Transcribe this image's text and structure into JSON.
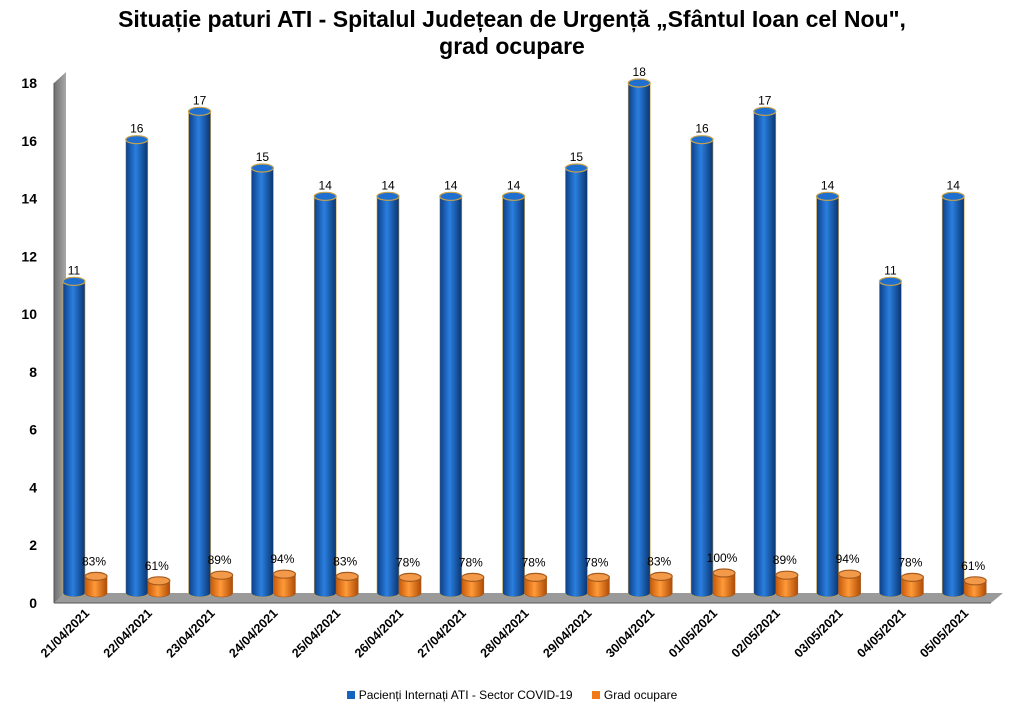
{
  "chart_data": {
    "type": "bar",
    "title": "Situație paturi ATI - Spitalul Județean de Urgență „Sfântul Ioan cel Nou\", grad ocupare",
    "categories": [
      "21/04/2021",
      "22/04/2021",
      "23/04/2021",
      "24/04/2021",
      "25/04/2021",
      "26/04/2021",
      "27/04/2021",
      "28/04/2021",
      "29/04/2021",
      "30/04/2021",
      "01/05/2021",
      "02/05/2021",
      "03/05/2021",
      "04/05/2021",
      "05/05/2021"
    ],
    "series": [
      {
        "name": "Pacienți Internați ATI - Sector COVID-19",
        "values": [
          11,
          16,
          17,
          15,
          14,
          14,
          14,
          14,
          15,
          18,
          16,
          17,
          14,
          11,
          14
        ],
        "labels": [
          "11",
          "16",
          "17",
          "15",
          "14",
          "14",
          "14",
          "14",
          "15",
          "18",
          "16",
          "17",
          "14",
          "11",
          "14"
        ],
        "color": "#1565c0"
      },
      {
        "name": "Grad ocupare",
        "values": [
          0.83,
          0.61,
          0.89,
          0.94,
          0.83,
          0.78,
          0.78,
          0.78,
          0.78,
          0.83,
          1.0,
          0.89,
          0.94,
          0.78,
          0.61
        ],
        "labels": [
          "83%",
          "61%",
          "89%",
          "94%",
          "83%",
          "78%",
          "78%",
          "78%",
          "78%",
          "83%",
          "100%",
          "89%",
          "94%",
          "78%",
          "61%"
        ],
        "color": "#f07a17"
      }
    ],
    "yticks": [
      "0",
      "2",
      "4",
      "6",
      "8",
      "10",
      "12",
      "14",
      "16",
      "18"
    ],
    "ylim": [
      0,
      18
    ],
    "grid": false,
    "legend_position": "bottom"
  }
}
